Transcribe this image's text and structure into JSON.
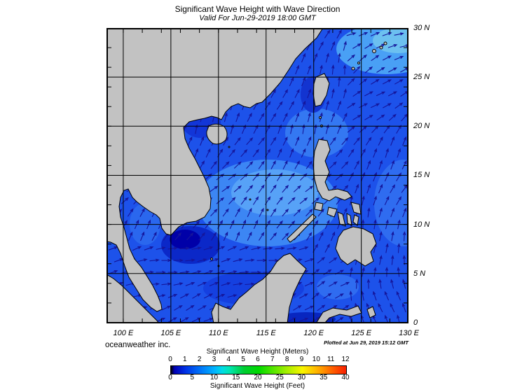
{
  "title": "Significant Wave Height with Wave Direction",
  "subtitle": "Valid For Jun-29-2019 18:00 GMT",
  "credit": "oceanweather inc.",
  "plotted_at": "Plotted at Jun 29, 2019 15:12 GMT",
  "map": {
    "lon_labels": [
      "100 E",
      "105 E",
      "110 E",
      "115 E",
      "120 E",
      "125 E",
      "130 E"
    ],
    "lat_labels": [
      "30 N",
      "25 N",
      "20 N",
      "15 N",
      "10 N",
      "5 N",
      "0"
    ],
    "land_color": "#c2c2c2",
    "coast_color": "#000000",
    "ocean_base_color": "#1d52ea",
    "arrow_color": "#15159a",
    "grid_color": "#000000",
    "wave_direction_summary": "Arrows point generally north to northeast across the South China Sea and Philippine Sea; eastward south of Vietnam toward Borneo"
  },
  "legend": {
    "title_meters": "Significant Wave Height (Meters)",
    "title_feet": "Significant Wave Height (Feet)",
    "meters_ticks": [
      "0",
      "1",
      "2",
      "3",
      "4",
      "5",
      "6",
      "7",
      "8",
      "9",
      "10",
      "11",
      "12"
    ],
    "feet_ticks": [
      "0",
      "5",
      "10",
      "15",
      "20",
      "25",
      "30",
      "35",
      "40"
    ],
    "stops": [
      [
        0,
        "#000000"
      ],
      [
        0.02,
        "#0000b4"
      ],
      [
        0.083,
        "#0032e6"
      ],
      [
        0.167,
        "#0073f8"
      ],
      [
        0.25,
        "#00b4ff"
      ],
      [
        0.292,
        "#00dce6"
      ],
      [
        0.333,
        "#00e6b4"
      ],
      [
        0.417,
        "#00cd32"
      ],
      [
        0.5,
        "#00d900"
      ],
      [
        0.583,
        "#55e600"
      ],
      [
        0.667,
        "#aaee00"
      ],
      [
        0.75,
        "#f8f500"
      ],
      [
        0.833,
        "#ffb400"
      ],
      [
        0.917,
        "#ff6400"
      ],
      [
        1,
        "#f81e00"
      ]
    ]
  }
}
